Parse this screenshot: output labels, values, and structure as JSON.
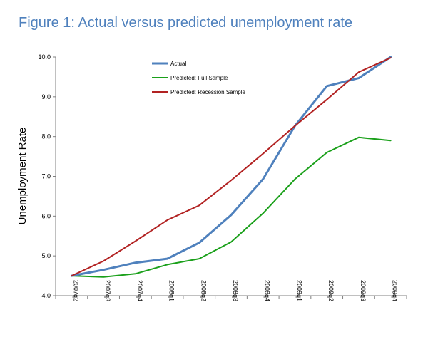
{
  "chart_data": {
    "type": "line",
    "title": "Figure 1:  Actual versus predicted unemployment rate",
    "xlabel": "",
    "ylabel": "Unemployment Rate",
    "ylim": [
      4.0,
      10.0
    ],
    "yticks": [
      "4.0",
      "5.0",
      "6.0",
      "7.0",
      "8.0",
      "9.0",
      "10.0"
    ],
    "categories": [
      "2007q2",
      "2007q3",
      "2007q4",
      "2008q1",
      "2008q2",
      "2008q3",
      "2008q4",
      "2009q1",
      "2009q2",
      "2009q3",
      "2009q4"
    ],
    "grid": false,
    "legend_position": "top-center",
    "series": [
      {
        "name": "Actual",
        "color": "#4f81bd",
        "values": [
          4.5,
          4.65,
          4.83,
          4.93,
          5.33,
          6.03,
          6.93,
          8.27,
          9.27,
          9.47,
          10.0
        ]
      },
      {
        "name": "Predicted: Full Sample",
        "color": "#1aa01a",
        "values": [
          4.5,
          4.47,
          4.55,
          4.78,
          4.93,
          5.35,
          6.07,
          6.93,
          7.6,
          7.98,
          7.9
        ]
      },
      {
        "name": "Predicted: Recession Sample",
        "color": "#b22222",
        "values": [
          4.5,
          4.87,
          5.37,
          5.9,
          6.27,
          6.9,
          7.57,
          8.27,
          8.93,
          9.62,
          9.98
        ]
      }
    ]
  },
  "colors": {
    "title": "#4f81bd",
    "axis": "#808080"
  }
}
